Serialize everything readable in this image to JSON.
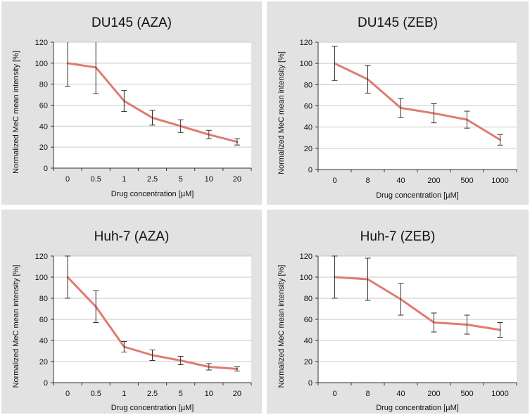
{
  "chart_data": [
    {
      "type": "line",
      "title": "DU145 (AZA)",
      "xlabel": "Drug concentration [µM]",
      "ylabel": "Normalized MeC mean intensity [%]",
      "categories": [
        "0",
        "0.5",
        "1",
        "2.5",
        "5",
        "10",
        "20"
      ],
      "values": [
        100,
        96,
        64,
        48,
        40,
        32,
        25
      ],
      "error": [
        22,
        25,
        10,
        7,
        6,
        4,
        3
      ],
      "ylim": [
        0,
        120
      ],
      "yticks": [
        0,
        20,
        40,
        60,
        80,
        100,
        120
      ],
      "grid": true,
      "line_color": "#e07b72"
    },
    {
      "type": "line",
      "title": "DU145 (ZEB)",
      "xlabel": "Drug concentration [µM]",
      "ylabel": "Normalized MeC mean intensity [%]",
      "categories": [
        "0",
        "8",
        "40",
        "200",
        "500",
        "1000"
      ],
      "values": [
        100,
        85,
        58,
        53,
        47,
        28
      ],
      "error": [
        16,
        13,
        9,
        9,
        8,
        5
      ],
      "ylim": [
        0,
        120
      ],
      "yticks": [
        0,
        20,
        40,
        60,
        80,
        100,
        120
      ],
      "grid": true,
      "line_color": "#e07b72"
    },
    {
      "type": "line",
      "title": "Huh-7 (AZA)",
      "xlabel": "Drug concentration [µM]",
      "ylabel": "Normalized MeC mean intensity [%]",
      "categories": [
        "0",
        "0.5",
        "1",
        "2.5",
        "5",
        "10",
        "20"
      ],
      "values": [
        100,
        72,
        34,
        26,
        21,
        15,
        13
      ],
      "error": [
        20,
        15,
        5,
        5,
        4,
        3,
        2
      ],
      "ylim": [
        0,
        120
      ],
      "yticks": [
        0,
        20,
        40,
        60,
        80,
        100,
        120
      ],
      "grid": true,
      "line_color": "#e07b72"
    },
    {
      "type": "line",
      "title": "Huh-7 (ZEB)",
      "xlabel": "Drug concentration [µM]",
      "ylabel": "Normalized MeC mean intensity [%]",
      "categories": [
        "0",
        "8",
        "40",
        "200",
        "500",
        "1000"
      ],
      "values": [
        100,
        98,
        79,
        57,
        55,
        50
      ],
      "error": [
        20,
        20,
        15,
        9,
        9,
        7
      ],
      "ylim": [
        0,
        120
      ],
      "yticks": [
        0,
        20,
        40,
        60,
        80,
        100,
        120
      ],
      "grid": true,
      "line_color": "#e07b72"
    }
  ]
}
